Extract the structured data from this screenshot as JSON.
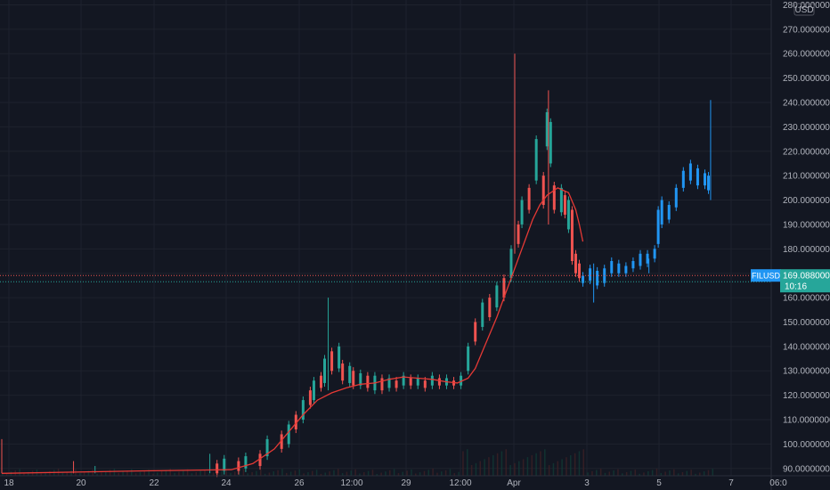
{
  "chart_data": {
    "type": "candlestick",
    "symbol": "FILUSD",
    "currency": "USD",
    "last_price": "169.08800000",
    "countdown": "10:16",
    "ylim": [
      87,
      282
    ],
    "y_ticks": [
      "280.00000000",
      "270.00000000",
      "260.00000000",
      "250.00000000",
      "240.00000000",
      "230.00000000",
      "220.00000000",
      "210.00000000",
      "200.00000000",
      "190.00000000",
      "180.00000000",
      "170.00000000",
      "160.00000000",
      "150.00000000",
      "140.00000000",
      "130.00000000",
      "120.00000000",
      "110.00000000",
      "100.00000000",
      "90.00000000"
    ],
    "x_ticks": [
      "18",
      "20",
      "22",
      "24",
      "26",
      "12:00",
      "29",
      "12:00",
      "Apr",
      "3",
      "5",
      "7",
      "06:0"
    ],
    "x_domain": [
      "Mar 17",
      "Apr 8"
    ],
    "price_line": 169.088,
    "crosshair_price": 166.5,
    "ma_line": [
      [
        0.0,
        88.0
      ],
      [
        2.0,
        89.0
      ],
      [
        3.2,
        89.5
      ],
      [
        3.5,
        92
      ],
      [
        3.8,
        98
      ],
      [
        4.0,
        105
      ],
      [
        4.2,
        112
      ],
      [
        4.4,
        118
      ],
      [
        4.6,
        121
      ],
      [
        4.8,
        123
      ],
      [
        5.0,
        124.5
      ],
      [
        5.2,
        125
      ],
      [
        5.4,
        126.5
      ],
      [
        5.6,
        127.5
      ],
      [
        5.8,
        127
      ],
      [
        6.0,
        126.5
      ],
      [
        6.2,
        125.5
      ],
      [
        6.35,
        125
      ],
      [
        6.5,
        127
      ],
      [
        6.6,
        131
      ],
      [
        6.7,
        138
      ],
      [
        6.8,
        145
      ],
      [
        6.9,
        152
      ],
      [
        7.0,
        160
      ],
      [
        7.1,
        168
      ],
      [
        7.2,
        176
      ],
      [
        7.3,
        184
      ],
      [
        7.4,
        192
      ],
      [
        7.5,
        198
      ],
      [
        7.6,
        202
      ],
      [
        7.75,
        205
      ],
      [
        7.9,
        203
      ],
      [
        8.0,
        196
      ],
      [
        8.05,
        190
      ],
      [
        8.1,
        183
      ]
    ],
    "candles_red": [
      [
        3.0,
        92,
        88
      ],
      [
        3.3,
        93,
        89
      ],
      [
        3.6,
        96,
        91
      ],
      [
        3.9,
        104,
        98
      ],
      [
        4.1,
        112,
        106
      ],
      [
        4.3,
        122,
        116
      ],
      [
        4.45,
        128,
        123
      ],
      [
        4.6,
        138,
        130
      ],
      [
        4.75,
        133,
        126
      ],
      [
        4.9,
        130,
        124
      ],
      [
        5.1,
        128,
        123
      ],
      [
        5.3,
        127,
        122
      ],
      [
        5.5,
        126,
        123
      ],
      [
        5.7,
        127,
        124
      ],
      [
        5.9,
        126,
        123
      ],
      [
        6.1,
        127,
        124
      ],
      [
        6.3,
        126,
        124
      ],
      [
        6.6,
        150,
        142
      ],
      [
        6.8,
        160,
        152
      ],
      [
        7.0,
        168,
        160
      ],
      [
        7.2,
        190,
        182
      ],
      [
        7.35,
        205,
        196
      ],
      [
        7.55,
        210,
        198
      ],
      [
        7.7,
        206,
        196
      ],
      [
        7.85,
        202,
        194
      ],
      [
        7.95,
        196,
        175
      ],
      [
        8.0,
        178,
        170
      ],
      [
        8.05,
        174,
        168
      ]
    ],
    "candles_green": [
      [
        3.1,
        94,
        89
      ],
      [
        3.4,
        95,
        90
      ],
      [
        3.7,
        102,
        95
      ],
      [
        4.0,
        108,
        100
      ],
      [
        4.2,
        118,
        110
      ],
      [
        4.35,
        126,
        118
      ],
      [
        4.5,
        135,
        125
      ],
      [
        4.7,
        140,
        131
      ],
      [
        4.85,
        132,
        125
      ],
      [
        5.0,
        129,
        124
      ],
      [
        5.2,
        128,
        122
      ],
      [
        5.4,
        127,
        123
      ],
      [
        5.6,
        128,
        124
      ],
      [
        5.8,
        127,
        124
      ],
      [
        6.0,
        128,
        124
      ],
      [
        6.2,
        127,
        124
      ],
      [
        6.4,
        128,
        124
      ],
      [
        6.5,
        140,
        130
      ],
      [
        6.7,
        158,
        148
      ],
      [
        6.9,
        165,
        156
      ],
      [
        7.1,
        180,
        168
      ],
      [
        7.25,
        200,
        190
      ],
      [
        7.45,
        225,
        208
      ],
      [
        7.6,
        236,
        222
      ],
      [
        7.65,
        232,
        215
      ],
      [
        7.8,
        205,
        195
      ],
      [
        7.9,
        200,
        188
      ]
    ],
    "candles_blue": [
      [
        8.1,
        169,
        166
      ],
      [
        8.2,
        172,
        167
      ],
      [
        8.3,
        171,
        165
      ],
      [
        8.4,
        172,
        166
      ],
      [
        8.5,
        175,
        170
      ],
      [
        8.6,
        174,
        170
      ],
      [
        8.7,
        173,
        170
      ],
      [
        8.8,
        175,
        172
      ],
      [
        8.9,
        178,
        173
      ],
      [
        9.0,
        178,
        174
      ],
      [
        9.1,
        180,
        176
      ],
      [
        9.15,
        196,
        182
      ],
      [
        9.2,
        200,
        190
      ],
      [
        9.3,
        198,
        192
      ],
      [
        9.4,
        205,
        197
      ],
      [
        9.5,
        212,
        205
      ],
      [
        9.6,
        215,
        208
      ],
      [
        9.7,
        213,
        206
      ],
      [
        9.8,
        211,
        206
      ],
      [
        9.85,
        210,
        204
      ]
    ],
    "wicks": [
      [
        0.0,
        102,
        88,
        "red"
      ],
      [
        1.0,
        93,
        88,
        "red"
      ],
      [
        1.3,
        91,
        88,
        "green"
      ],
      [
        2.9,
        96,
        88,
        "green"
      ],
      [
        4.55,
        160,
        122,
        "green"
      ],
      [
        7.15,
        260,
        178,
        "red"
      ],
      [
        7.62,
        245,
        190,
        "red"
      ],
      [
        8.25,
        174,
        158,
        "blue"
      ],
      [
        9.02,
        176,
        170,
        "blue"
      ],
      [
        9.88,
        241,
        200,
        "blue"
      ]
    ]
  }
}
